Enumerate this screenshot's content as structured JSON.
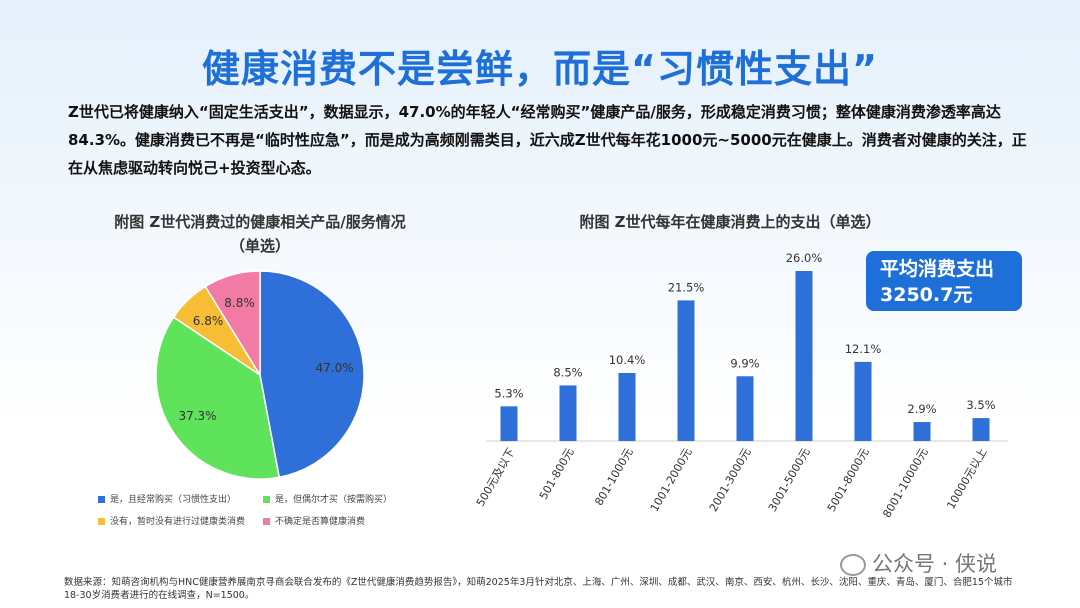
{
  "title": "健康消费不是尝鲜，而是“习惯性支出”",
  "intro": "Z世代已将健康纳入“固定生活支出”，数据显示，47.0%的年轻人“经常购买”健康产品/服务，形成稳定消费习惯；整体健康消费渗透率高达84.3%。健康消费已不再是“临时性应急”，而是成为高频刚需类目，近六成Z世代每年花1000元~5000元在健康上。消费者对健康的关注，正在从焦虑驱动转向悦己+投资型心态。",
  "avg_box": {
    "line1": "平均消费支出",
    "line2": "3250.7元"
  },
  "source": "数据来源：知萌咨询机构与HNC健康营养展南京寻商会联合发布的《Z世代健康消费趋势报告》，知萌2025年3月针对北京、上海、广州、深圳、成都、武汉、南京、西安、杭州、长沙、沈阳、重庆、青岛、厦门、合肥15个城市18-30岁消费者进行的在线调查，N=1500。",
  "watermark": "公众号 · 侠说",
  "chart_data": [
    {
      "type": "pie",
      "title": "附图  Z世代消费过的健康相关产品/服务情况",
      "subtitle": "（单选）",
      "slices": [
        {
          "label": "是，且经常购买（习惯性支出）",
          "value": 47.0,
          "display": "47.0%",
          "color": "#2e6fd9"
        },
        {
          "label": "是，但偶尔才买（按需购买）",
          "value": 37.3,
          "display": "37.3%",
          "color": "#5fe35a"
        },
        {
          "label": "没有，暂时没有进行过健康类消费",
          "value": 6.8,
          "display": "6.8%",
          "color": "#f7bd35"
        },
        {
          "label": "不确定是否算健康消费",
          "value": 8.8,
          "display": "8.8%",
          "color": "#f27ba5"
        }
      ],
      "legend_placement": "bottom"
    },
    {
      "type": "bar",
      "title": "附图  Z世代每年在健康消费上的支出（单选）",
      "categories": [
        "500元及以下",
        "501-800元",
        "801-1000元",
        "1001-2000元",
        "2001-3000元",
        "3001-5000元",
        "5001-8000元",
        "8001-10000元",
        "10000元以上"
      ],
      "values": [
        5.3,
        8.5,
        10.4,
        21.5,
        9.9,
        26.0,
        12.1,
        2.9,
        3.5
      ],
      "labels": [
        "5.3%",
        "8.5%",
        "10.4%",
        "21.5%",
        "9.9%",
        "26.0%",
        "12.1%",
        "2.9%",
        "3.5%"
      ],
      "ylim": [
        0,
        26.0
      ],
      "color": "#2e6fd9"
    }
  ]
}
